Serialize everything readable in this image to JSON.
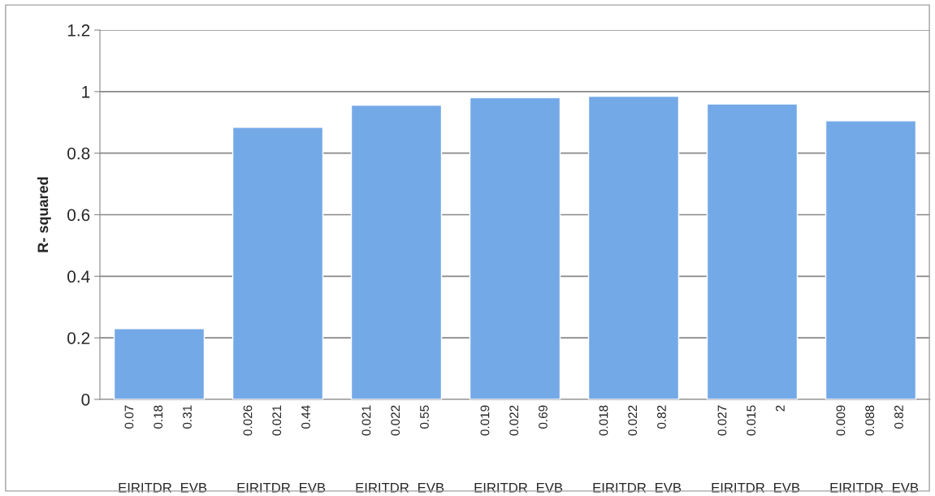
{
  "chart_data": {
    "type": "bar",
    "ylabel": "R- squared",
    "categories": [
      "0.07 0.18 0.31\nEIRITDR EVB",
      "0.026 0.021 0.44\nEIRITDR EVB",
      "0.021 0.022 0.55\nEIRITDR EVB",
      "0.019 0.022 0.69\nEIRITDR EVB",
      "0.018 0.022 0.82\nEIRITDR EVB",
      "0.027 0.015 2\nEIRITDR EVB",
      "0.009 0.088 0.82\nEIRITDR EVB"
    ],
    "values": [
      0.23,
      0.884,
      0.956,
      0.98,
      0.985,
      0.96,
      0.905
    ],
    "color": "#74a9e8",
    "ylim": [
      0,
      1.2
    ],
    "yticks": [
      0,
      0.2,
      0.4,
      0.6,
      0.8,
      1,
      1.2
    ],
    "grid": "y"
  }
}
